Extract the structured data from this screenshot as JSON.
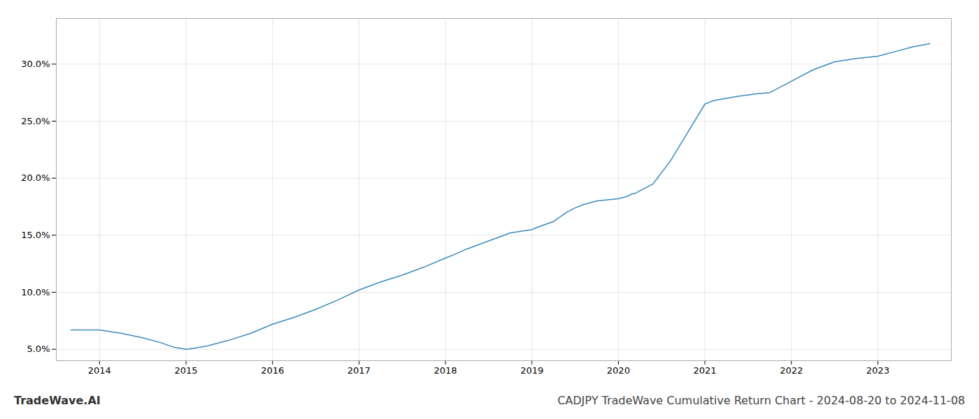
{
  "chart_data": {
    "type": "line",
    "title": "CADJPY TradeWave Cumulative Return Chart - 2024-08-20 to 2024-11-08",
    "annotations": [
      "TradeWave.AI"
    ],
    "color": "#3a8abf",
    "grid": true,
    "x": [
      2013.67,
      2014.0,
      2014.25,
      2014.5,
      2014.7,
      2014.85,
      2015.0,
      2015.1,
      2015.25,
      2015.5,
      2015.75,
      2016.0,
      2016.25,
      2016.5,
      2016.75,
      2017.0,
      2017.25,
      2017.5,
      2017.75,
      2018.0,
      2018.1,
      2018.25,
      2018.5,
      2018.75,
      2019.0,
      2019.1,
      2019.25,
      2019.4,
      2019.5,
      2019.6,
      2019.75,
      2020.0,
      2020.1,
      2020.15,
      2020.2,
      2020.4,
      2020.6,
      2020.8,
      2021.0,
      2021.1,
      2021.25,
      2021.4,
      2021.5,
      2021.6,
      2021.75,
      2022.0,
      2022.25,
      2022.5,
      2022.75,
      2023.0,
      2023.2,
      2023.4,
      2023.6
    ],
    "values": [
      6.7,
      6.7,
      6.4,
      6.0,
      5.6,
      5.2,
      5.0,
      5.1,
      5.3,
      5.8,
      6.4,
      7.2,
      7.8,
      8.5,
      9.3,
      10.2,
      10.9,
      11.5,
      12.2,
      13.0,
      13.3,
      13.8,
      14.5,
      15.2,
      15.5,
      15.8,
      16.2,
      17.0,
      17.4,
      17.7,
      18.0,
      18.2,
      18.4,
      18.6,
      18.7,
      19.5,
      21.5,
      24.0,
      26.5,
      26.8,
      27.0,
      27.2,
      27.3,
      27.4,
      27.5,
      28.5,
      29.5,
      30.2,
      30.5,
      30.7,
      31.1,
      31.5,
      31.8
    ],
    "xlim": [
      2013.5,
      2023.85
    ],
    "xticks": [
      2014,
      2015,
      2016,
      2017,
      2018,
      2019,
      2020,
      2021,
      2022,
      2023
    ],
    "ylim": [
      4.0,
      34.0
    ],
    "yticks": [
      {
        "value": 5.0,
        "label": "5.0%"
      },
      {
        "value": 10.0,
        "label": "10.0%"
      },
      {
        "value": 15.0,
        "label": "15.0%"
      },
      {
        "value": 20.0,
        "label": "20.0%"
      },
      {
        "value": 25.0,
        "label": "25.0%"
      },
      {
        "value": 30.0,
        "label": "30.0%"
      }
    ]
  }
}
